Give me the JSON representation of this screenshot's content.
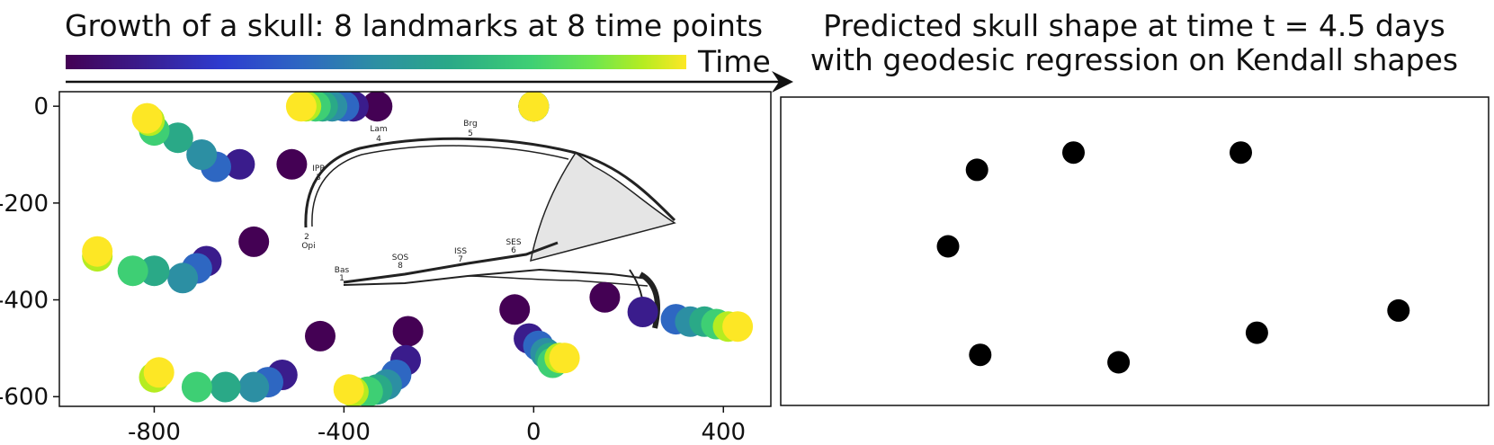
{
  "chart_data": [
    {
      "type": "scatter",
      "title": "Growth of a skull: 8 landmarks at 8 time points",
      "colorbar_label": "Time",
      "colormap": [
        "#440154",
        "#3a1c8c",
        "#2d3bcf",
        "#2e67c2",
        "#2c8fa3",
        "#2aa987",
        "#3ecf74",
        "#6ee64e",
        "#b5ec21",
        "#fde725"
      ],
      "xlim": [
        -1000,
        500
      ],
      "ylim": [
        -620,
        30
      ],
      "xticks": [
        -800,
        -400,
        0,
        400
      ],
      "yticks": [
        0,
        -200,
        -400,
        -600
      ],
      "series": [
        {
          "points": [
            [
              -330,
              0
            ],
            [
              -380,
              0
            ],
            [
              -400,
              0
            ],
            [
              -425,
              0
            ],
            [
              -445,
              0
            ],
            [
              -460,
              0
            ],
            [
              -480,
              0
            ],
            [
              -490,
              0
            ]
          ]
        },
        {
          "points": [
            [
              -510,
              -120
            ],
            [
              -620,
              -120
            ],
            [
              -670,
              -125
            ],
            [
              -700,
              -100
            ],
            [
              -750,
              -65
            ],
            [
              -800,
              -50
            ],
            [
              -810,
              -30
            ],
            [
              -815,
              -25
            ]
          ]
        },
        {
          "points": [
            [
              -590,
              -280
            ],
            [
              -690,
              -320
            ],
            [
              -710,
              -335
            ],
            [
              -740,
              -355
            ],
            [
              -800,
              -340
            ],
            [
              -845,
              -340
            ],
            [
              -920,
              -310
            ],
            [
              -920,
              -300
            ]
          ]
        },
        {
          "points": [
            [
              -450,
              -475
            ],
            [
              -530,
              -555
            ],
            [
              -560,
              -570
            ],
            [
              -590,
              -580
            ],
            [
              -650,
              -580
            ],
            [
              -710,
              -580
            ],
            [
              -800,
              -560
            ],
            [
              -790,
              -550
            ]
          ]
        },
        {
          "points": [
            [
              -265,
              -465
            ],
            [
              -270,
              -525
            ],
            [
              -290,
              -555
            ],
            [
              -310,
              -575
            ],
            [
              -330,
              -585
            ],
            [
              -350,
              -590
            ],
            [
              -380,
              -590
            ],
            [
              -390,
              -585
            ]
          ]
        },
        {
          "points": [
            [
              -40,
              -420
            ],
            [
              -10,
              -480
            ],
            [
              10,
              -495
            ],
            [
              25,
              -510
            ],
            [
              35,
              -520
            ],
            [
              40,
              -530
            ],
            [
              55,
              -520
            ],
            [
              65,
              -520
            ]
          ]
        },
        {
          "points": [
            [
              150,
              -395
            ],
            [
              230,
              -425
            ],
            [
              300,
              -440
            ],
            [
              330,
              -445
            ],
            [
              360,
              -445
            ],
            [
              385,
              -450
            ],
            [
              410,
              -455
            ],
            [
              430,
              -455
            ]
          ]
        },
        {
          "points": [
            [
              0,
              0
            ],
            [
              0,
              0
            ],
            [
              0,
              0
            ],
            [
              0,
              0
            ],
            [
              0,
              0
            ],
            [
              0,
              0
            ],
            [
              0,
              0
            ],
            [
              0,
              0
            ]
          ]
        }
      ],
      "skull_labels": {
        "lam": "Lam",
        "lam_n": "4",
        "brg": "Brg",
        "brg_n": "5",
        "ipp": "IPP",
        "ipp_n": "3",
        "opi_n": "2",
        "opi": "Opi",
        "bas": "Bas",
        "bas_n": "1",
        "sos": "SOS",
        "sos_n": "8",
        "iss": "ISS",
        "iss_n": "7",
        "ses": "SES",
        "ses_n": "6"
      }
    },
    {
      "type": "scatter",
      "title_line1": "Predicted skull shape at time t = 4.5 days",
      "title_line2": "with geodesic regression on Kendall shapes",
      "point_color": "#000000",
      "points": [
        [
          -0.49,
          0.33
        ],
        [
          -0.19,
          0.4
        ],
        [
          0.33,
          0.4
        ],
        [
          -0.58,
          0.02
        ],
        [
          -0.48,
          -0.42
        ],
        [
          -0.05,
          -0.45
        ],
        [
          0.38,
          -0.33
        ],
        [
          0.82,
          -0.24
        ]
      ]
    }
  ]
}
